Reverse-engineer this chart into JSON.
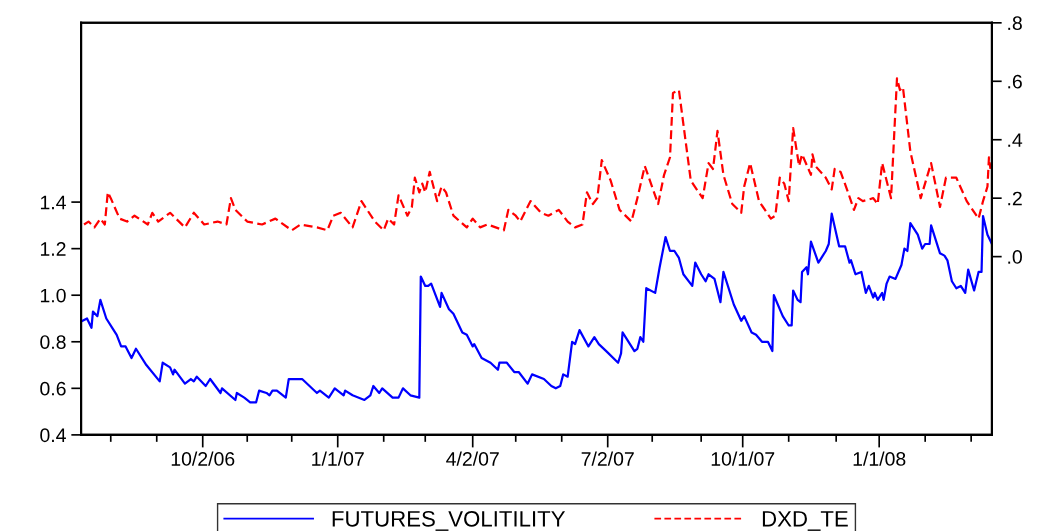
{
  "chart_data": {
    "type": "line",
    "xlim": [
      "2006-07-12",
      "2008-03-17"
    ],
    "xticks": [
      {
        "value": "2006-08-01",
        "label": null
      },
      {
        "value": "2006-09-01",
        "label": null
      },
      {
        "value": "2006-10-02",
        "label": "10/2/06"
      },
      {
        "value": "2006-11-01",
        "label": null
      },
      {
        "value": "2006-12-01",
        "label": null
      },
      {
        "value": "2007-01-01",
        "label": "1/1/07"
      },
      {
        "value": "2007-02-01",
        "label": null
      },
      {
        "value": "2007-03-01",
        "label": null
      },
      {
        "value": "2007-04-02",
        "label": "4/2/07"
      },
      {
        "value": "2007-05-01",
        "label": null
      },
      {
        "value": "2007-06-01",
        "label": null
      },
      {
        "value": "2007-07-02",
        "label": "7/2/07"
      },
      {
        "value": "2007-08-01",
        "label": null
      },
      {
        "value": "2007-09-03",
        "label": null
      },
      {
        "value": "2007-10-01",
        "label": "10/1/07"
      },
      {
        "value": "2007-11-01",
        "label": null
      },
      {
        "value": "2007-12-03",
        "label": null
      },
      {
        "value": "2008-01-01",
        "label": "1/1/08"
      },
      {
        "value": "2008-02-01",
        "label": null
      },
      {
        "value": "2008-03-03",
        "label": null
      }
    ],
    "ylim": [
      0.4,
      2.17
    ],
    "yticks": [
      0.4,
      0.6,
      0.8,
      {
        "value": 1.0,
        "label": "1.0"
      },
      1.2,
      1.4
    ],
    "y2lim": [
      -0.61,
      0.8
    ],
    "y2ticks": [
      {
        "value": 0.0,
        "label": ".0"
      },
      {
        "value": 0.2,
        "label": ".2"
      },
      {
        "value": 0.4,
        "label": ".4"
      },
      {
        "value": 0.6,
        "label": ".6"
      },
      {
        "value": 0.8,
        "label": ".8"
      }
    ],
    "grid": false,
    "legend": "bottom",
    "series": [
      {
        "name": "FUTURES_VOLITILITY",
        "color": "#0000ff",
        "line_style": "solid",
        "x": [
          "2006-07-13",
          "2006-07-16",
          "2006-07-19",
          "2006-07-20",
          "2006-07-23",
          "2006-07-25",
          "2006-07-29",
          "2006-08-02",
          "2006-08-05",
          "2006-08-08",
          "2006-08-11",
          "2006-08-15",
          "2006-08-18",
          "2006-08-25",
          "2006-09-03",
          "2006-09-05",
          "2006-09-10",
          "2006-09-12",
          "2006-09-13",
          "2006-09-20",
          "2006-09-24",
          "2006-09-26",
          "2006-09-28",
          "2006-10-04",
          "2006-10-07",
          "2006-10-14",
          "2006-10-15",
          "2006-10-24",
          "2006-10-25",
          "2006-10-30",
          "2006-11-03",
          "2006-11-07",
          "2006-11-09",
          "2006-11-14",
          "2006-11-16",
          "2006-11-18",
          "2006-11-21",
          "2006-11-27",
          "2006-11-29",
          "2006-12-03",
          "2006-12-08",
          "2006-12-18",
          "2006-12-20",
          "2006-12-26",
          "2006-12-30",
          "2007-01-05",
          "2007-01-06",
          "2007-01-11",
          "2007-01-19",
          "2007-01-23",
          "2007-01-25",
          "2007-01-29",
          "2007-01-31",
          "2007-02-07",
          "2007-02-11",
          "2007-02-14",
          "2007-02-19",
          "2007-02-25",
          "2007-02-26",
          "2007-03-01",
          "2007-03-03",
          "2007-03-05",
          "2007-03-11",
          "2007-03-12",
          "2007-03-17",
          "2007-03-20",
          "2007-03-26",
          "2007-03-29",
          "2007-04-02",
          "2007-04-03",
          "2007-04-08",
          "2007-04-14",
          "2007-04-19",
          "2007-04-20",
          "2007-04-25",
          "2007-04-30",
          "2007-05-03",
          "2007-05-09",
          "2007-05-12",
          "2007-05-20",
          "2007-05-25",
          "2007-05-28",
          "2007-05-31",
          "2007-06-02",
          "2007-06-05",
          "2007-06-08",
          "2007-06-10",
          "2007-06-13",
          "2007-06-19",
          "2007-06-23",
          "2007-06-26",
          "2007-07-01",
          "2007-07-09",
          "2007-07-11",
          "2007-07-12",
          "2007-07-20",
          "2007-07-22",
          "2007-07-24",
          "2007-07-26",
          "2007-07-28",
          "2007-08-03",
          "2007-08-06",
          "2007-08-10",
          "2007-08-13",
          "2007-08-16",
          "2007-08-19",
          "2007-08-22",
          "2007-08-28",
          "2007-08-30",
          "2007-09-03",
          "2007-09-06",
          "2007-09-08",
          "2007-09-12",
          "2007-09-16",
          "2007-09-18",
          "2007-09-25",
          "2007-09-30",
          "2007-10-02",
          "2007-10-07",
          "2007-10-10",
          "2007-10-14",
          "2007-10-18",
          "2007-10-21",
          "2007-10-22",
          "2007-10-28",
          "2007-11-01",
          "2007-11-03",
          "2007-11-04",
          "2007-11-07",
          "2007-11-09",
          "2007-11-10",
          "2007-11-13",
          "2007-11-14",
          "2007-11-16",
          "2007-11-21",
          "2007-11-22",
          "2007-11-26",
          "2007-11-28",
          "2007-11-30",
          "2007-12-05",
          "2007-12-09",
          "2007-12-12",
          "2007-12-13",
          "2007-12-16",
          "2007-12-20",
          "2007-12-23",
          "2007-12-25",
          "2007-12-28",
          "2007-12-29",
          "2007-12-31",
          "2008-01-03",
          "2008-01-04",
          "2008-01-06",
          "2008-01-08",
          "2008-01-12",
          "2008-01-16",
          "2008-01-18",
          "2008-01-20",
          "2008-01-22",
          "2008-01-27",
          "2008-01-30",
          "2008-02-01",
          "2008-02-04",
          "2008-02-05",
          "2008-02-11",
          "2008-02-14",
          "2008-02-16",
          "2008-02-19",
          "2008-02-22",
          "2008-02-25",
          "2008-02-28",
          "2008-03-01",
          "2008-03-05",
          "2008-03-08",
          "2008-03-10",
          "2008-03-11",
          "2008-03-14",
          "2008-03-17"
        ],
        "values": [
          0.89,
          0.9,
          0.86,
          0.93,
          0.91,
          0.98,
          0.9,
          0.86,
          0.83,
          0.78,
          0.78,
          0.73,
          0.77,
          0.7,
          0.63,
          0.71,
          0.69,
          0.66,
          0.68,
          0.62,
          0.64,
          0.63,
          0.65,
          0.61,
          0.64,
          0.58,
          0.6,
          0.55,
          0.58,
          0.56,
          0.54,
          0.54,
          0.59,
          0.58,
          0.57,
          0.59,
          0.59,
          0.56,
          0.64,
          0.64,
          0.64,
          0.58,
          0.59,
          0.56,
          0.6,
          0.57,
          0.59,
          0.57,
          0.55,
          0.57,
          0.61,
          0.58,
          0.6,
          0.56,
          0.56,
          0.6,
          0.57,
          0.56,
          1.08,
          1.04,
          1.04,
          1.05,
          0.95,
          1.01,
          0.94,
          0.92,
          0.84,
          0.83,
          0.78,
          0.79,
          0.73,
          0.71,
          0.68,
          0.71,
          0.71,
          0.67,
          0.67,
          0.62,
          0.66,
          0.64,
          0.61,
          0.6,
          0.61,
          0.66,
          0.65,
          0.8,
          0.79,
          0.85,
          0.78,
          0.82,
          0.79,
          0.76,
          0.71,
          0.75,
          0.84,
          0.76,
          0.77,
          0.82,
          0.8,
          1.03,
          1.01,
          1.12,
          1.25,
          1.19,
          1.19,
          1.16,
          1.09,
          1.04,
          1.14,
          1.09,
          1.06,
          1.09,
          1.07,
          0.97,
          1.1,
          0.96,
          0.89,
          0.91,
          0.84,
          0.83,
          0.8,
          0.8,
          0.76,
          1.0,
          0.91,
          0.87,
          0.87,
          1.02,
          0.98,
          0.97,
          1.1,
          1.12,
          1.09,
          1.23,
          1.14,
          1.15,
          1.19,
          1.22,
          1.35,
          1.21,
          1.21,
          1.14,
          1.15,
          1.09,
          1.1,
          1.01,
          1.04,
          0.99,
          1.01,
          0.98,
          1.01,
          0.98,
          1.05,
          1.08,
          1.07,
          1.13,
          1.2,
          1.19,
          1.31,
          1.26,
          1.2,
          1.22,
          1.22,
          1.3,
          1.18,
          1.17,
          1.15,
          1.06,
          1.03,
          1.04,
          1.01,
          1.11,
          1.02,
          1.1,
          1.1,
          1.34,
          1.26,
          1.22
        ]
      },
      {
        "name": "DXD_TE",
        "color": "#ff0000",
        "line_style": "dashed",
        "axis": "y2",
        "x": [
          "2006-07-14",
          "2006-07-17",
          "2006-07-21",
          "2006-07-25",
          "2006-07-28",
          "2006-07-30",
          "2006-08-01",
          "2006-08-07",
          "2006-08-12",
          "2006-08-17",
          "2006-08-26",
          "2006-08-29",
          "2006-09-02",
          "2006-09-10",
          "2006-09-20",
          "2006-09-26",
          "2006-10-03",
          "2006-10-12",
          "2006-10-18",
          "2006-10-21",
          "2006-10-24",
          "2006-11-01",
          "2006-11-11",
          "2006-11-20",
          "2006-12-01",
          "2006-12-07",
          "2006-12-18",
          "2006-12-25",
          "2006-12-29",
          "2007-01-03",
          "2007-01-11",
          "2007-01-17",
          "2007-01-26",
          "2007-02-01",
          "2007-02-04",
          "2007-02-08",
          "2007-02-11",
          "2007-02-17",
          "2007-02-20",
          "2007-02-22",
          "2007-02-25",
          "2007-02-27",
          "2007-03-01",
          "2007-03-04",
          "2007-03-09",
          "2007-03-12",
          "2007-03-15",
          "2007-03-20",
          "2007-03-29",
          "2007-04-02",
          "2007-04-07",
          "2007-04-12",
          "2007-04-23",
          "2007-04-26",
          "2007-05-01",
          "2007-05-04",
          "2007-05-11",
          "2007-05-18",
          "2007-05-23",
          "2007-05-30",
          "2007-06-05",
          "2007-06-10",
          "2007-06-15",
          "2007-06-18",
          "2007-06-22",
          "2007-06-25",
          "2007-06-28",
          "2007-07-04",
          "2007-07-10",
          "2007-07-18",
          "2007-07-22",
          "2007-07-27",
          "2007-08-05",
          "2007-08-09",
          "2007-08-13",
          "2007-08-15",
          "2007-08-19",
          "2007-08-27",
          "2007-09-04",
          "2007-09-08",
          "2007-09-11",
          "2007-09-14",
          "2007-09-18",
          "2007-09-24",
          "2007-09-30",
          "2007-10-02",
          "2007-10-06",
          "2007-10-12",
          "2007-10-20",
          "2007-10-23",
          "2007-10-26",
          "2007-10-29",
          "2007-11-01",
          "2007-11-04",
          "2007-11-08",
          "2007-11-10",
          "2007-11-16",
          "2007-11-17",
          "2007-11-19",
          "2007-11-26",
          "2007-11-30",
          "2007-12-02",
          "2007-12-06",
          "2007-12-11",
          "2007-12-15",
          "2007-12-18",
          "2007-12-21",
          "2007-12-28",
          "2007-12-31",
          "2008-01-03",
          "2008-01-09",
          "2008-01-13",
          "2008-01-15",
          "2008-01-17",
          "2008-01-22",
          "2008-01-29",
          "2008-02-05",
          "2008-02-11",
          "2008-02-15",
          "2008-02-22",
          "2008-02-29",
          "2008-03-08",
          "2008-03-11",
          "2008-03-14",
          "2008-03-15",
          "2008-03-16"
        ],
        "values": [
          0.11,
          0.12,
          0.1,
          0.13,
          0.11,
          0.22,
          0.2,
          0.13,
          0.12,
          0.14,
          0.11,
          0.15,
          0.12,
          0.15,
          0.1,
          0.15,
          0.11,
          0.12,
          0.11,
          0.2,
          0.16,
          0.12,
          0.11,
          0.13,
          0.09,
          0.11,
          0.1,
          0.09,
          0.14,
          0.15,
          0.1,
          0.19,
          0.12,
          0.09,
          0.13,
          0.11,
          0.21,
          0.14,
          0.17,
          0.27,
          0.22,
          0.25,
          0.22,
          0.29,
          0.19,
          0.24,
          0.22,
          0.14,
          0.1,
          0.13,
          0.1,
          0.11,
          0.09,
          0.16,
          0.14,
          0.12,
          0.19,
          0.15,
          0.14,
          0.16,
          0.12,
          0.1,
          0.11,
          0.22,
          0.18,
          0.2,
          0.33,
          0.26,
          0.16,
          0.12,
          0.2,
          0.31,
          0.18,
          0.28,
          0.34,
          0.56,
          0.57,
          0.26,
          0.2,
          0.32,
          0.3,
          0.43,
          0.28,
          0.18,
          0.15,
          0.24,
          0.32,
          0.19,
          0.13,
          0.14,
          0.27,
          0.25,
          0.19,
          0.44,
          0.31,
          0.35,
          0.28,
          0.35,
          0.31,
          0.27,
          0.23,
          0.3,
          0.29,
          0.22,
          0.16,
          0.2,
          0.19,
          0.2,
          0.18,
          0.32,
          0.2,
          0.61,
          0.57,
          0.58,
          0.36,
          0.2,
          0.32,
          0.17,
          0.27,
          0.27,
          0.19,
          0.13,
          0.19,
          0.24,
          0.34,
          0.3
        ]
      }
    ]
  }
}
